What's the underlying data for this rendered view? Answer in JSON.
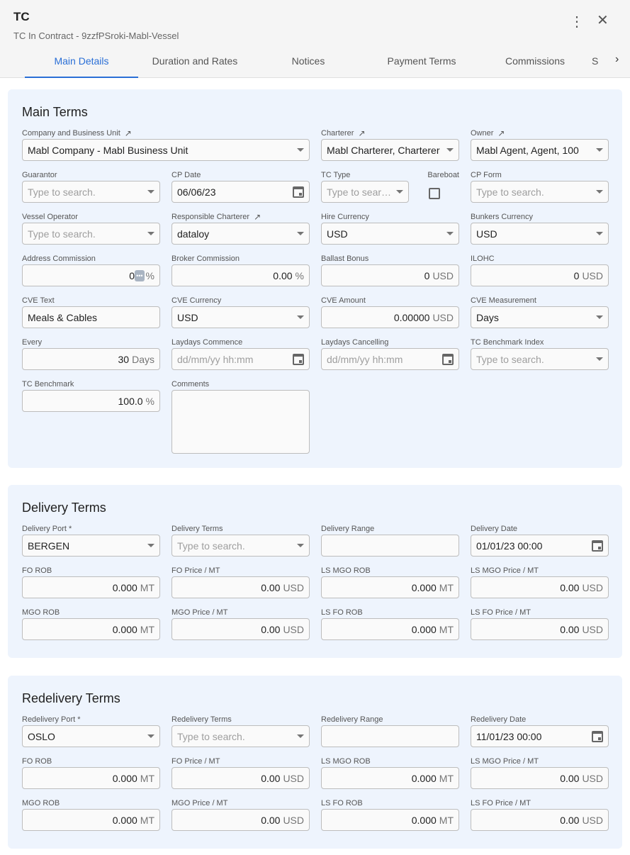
{
  "header": {
    "title": "TC",
    "subtitle": "TC In Contract - 9zzfPSroki-Mabl-Vessel"
  },
  "tabs": [
    "Main Details",
    "Duration and Rates",
    "Notices",
    "Payment Terms",
    "Commissions",
    "S"
  ],
  "sections": [
    {
      "title": "Main Terms",
      "fields": [
        {
          "label": "Company and Business Unit",
          "link": true,
          "type": "select",
          "value": "Mabl Company - Mabl Business Unit",
          "span": 2
        },
        {
          "label": "Charterer",
          "link": true,
          "type": "select",
          "value": "Mabl Charterer, Charterer"
        },
        {
          "label": "Owner",
          "link": true,
          "type": "select",
          "value": "Mabl Agent, Agent, 100"
        },
        {
          "label": "Guarantor",
          "type": "select",
          "placeholder": "Type to search."
        },
        {
          "label": "CP Date",
          "type": "date",
          "value": "06/06/23"
        },
        {
          "label": "TC Type",
          "type": "select",
          "placeholder": "Type to search.",
          "bareboat": "Bareboat",
          "bareboat_checked": false
        },
        {
          "label": "CP Form",
          "type": "select",
          "placeholder": "Type to search."
        },
        {
          "label": "Vessel Operator",
          "type": "select",
          "placeholder": "Type to search."
        },
        {
          "label": "Responsible Charterer",
          "link": true,
          "type": "select",
          "value": "dataloy"
        },
        {
          "label": "Hire Currency",
          "type": "select",
          "value": "USD"
        },
        {
          "label": "Bunkers Currency",
          "type": "select",
          "value": "USD"
        },
        {
          "label": "Address Commission",
          "type": "num",
          "value": "0",
          "unit": "%",
          "overlay": "•••"
        },
        {
          "label": "Broker Commission",
          "type": "num",
          "value": "0.00",
          "unit": "%"
        },
        {
          "label": "Ballast Bonus",
          "type": "num",
          "value": "0",
          "unit": "USD"
        },
        {
          "label": "ILOHC",
          "type": "num",
          "value": "0",
          "unit": "USD"
        },
        {
          "label": "CVE Text",
          "type": "text",
          "value": "Meals & Cables"
        },
        {
          "label": "CVE Currency",
          "type": "select",
          "value": "USD"
        },
        {
          "label": "CVE Amount",
          "type": "num",
          "value": "0.00000",
          "unit": "USD"
        },
        {
          "label": "CVE Measurement",
          "type": "select",
          "value": "Days"
        },
        {
          "label": "Every",
          "type": "num",
          "value": "30",
          "unit": "Days"
        },
        {
          "label": "Laydays Commence",
          "type": "date",
          "placeholder": "dd/mm/yy hh:mm"
        },
        {
          "label": "Laydays Cancelling",
          "type": "date",
          "placeholder": "dd/mm/yy hh:mm"
        },
        {
          "label": "TC Benchmark Index",
          "type": "select",
          "placeholder": "Type to search."
        },
        {
          "label": "TC Benchmark",
          "type": "num",
          "value": "100.0",
          "unit": "%"
        },
        {
          "label": "Comments",
          "type": "textarea",
          "value": ""
        }
      ]
    },
    {
      "title": "Delivery Terms",
      "fields": [
        {
          "label": "Delivery Port *",
          "type": "select",
          "value": "BERGEN"
        },
        {
          "label": "Delivery Terms",
          "type": "select",
          "placeholder": "Type to search."
        },
        {
          "label": "Delivery Range",
          "type": "text",
          "value": ""
        },
        {
          "label": "Delivery Date",
          "type": "date",
          "value": "01/01/23 00:00"
        },
        {
          "label": "FO ROB",
          "type": "num",
          "value": "0.000",
          "unit": "MT"
        },
        {
          "label": "FO Price / MT",
          "type": "num",
          "value": "0.00",
          "unit": "USD"
        },
        {
          "label": "LS MGO ROB",
          "type": "num",
          "value": "0.000",
          "unit": "MT"
        },
        {
          "label": "LS MGO Price / MT",
          "type": "num",
          "value": "0.00",
          "unit": "USD"
        },
        {
          "label": "MGO ROB",
          "type": "num",
          "value": "0.000",
          "unit": "MT"
        },
        {
          "label": "MGO Price / MT",
          "type": "num",
          "value": "0.00",
          "unit": "USD"
        },
        {
          "label": "LS FO ROB",
          "type": "num",
          "value": "0.000",
          "unit": "MT"
        },
        {
          "label": "LS FO Price / MT",
          "type": "num",
          "value": "0.00",
          "unit": "USD"
        }
      ]
    },
    {
      "title": "Redelivery Terms",
      "fields": [
        {
          "label": "Redelivery Port *",
          "type": "select",
          "value": "OSLO"
        },
        {
          "label": "Redelivery Terms",
          "type": "select",
          "placeholder": "Type to search."
        },
        {
          "label": "Redelivery Range",
          "type": "text",
          "value": ""
        },
        {
          "label": "Redelivery Date",
          "type": "date",
          "value": "11/01/23 00:00"
        },
        {
          "label": "FO ROB",
          "type": "num",
          "value": "0.000",
          "unit": "MT"
        },
        {
          "label": "FO Price / MT",
          "type": "num",
          "value": "0.00",
          "unit": "USD"
        },
        {
          "label": "LS MGO ROB",
          "type": "num",
          "value": "0.000",
          "unit": "MT"
        },
        {
          "label": "LS MGO Price / MT",
          "type": "num",
          "value": "0.00",
          "unit": "USD"
        },
        {
          "label": "MGO ROB",
          "type": "num",
          "value": "0.000",
          "unit": "MT"
        },
        {
          "label": "MGO Price / MT",
          "type": "num",
          "value": "0.00",
          "unit": "USD"
        },
        {
          "label": "LS FO ROB",
          "type": "num",
          "value": "0.000",
          "unit": "MT"
        },
        {
          "label": "LS FO Price / MT",
          "type": "num",
          "value": "0.00",
          "unit": "USD"
        }
      ]
    }
  ]
}
